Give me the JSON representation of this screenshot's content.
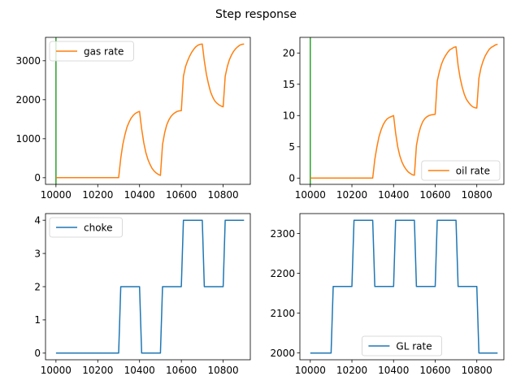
{
  "figure": {
    "title": "Step response"
  },
  "chart_data": [
    {
      "type": "line",
      "id": "gas",
      "legend": "upper-left",
      "xlim": [
        9950,
        10930
      ],
      "ylim": [
        -170,
        3600
      ],
      "xticks": [
        10000,
        10200,
        10400,
        10600,
        10800
      ],
      "yticks": [
        0,
        1000,
        2000,
        3000
      ],
      "vline": {
        "x": 10000,
        "color": "#2ca02c"
      },
      "series": [
        {
          "name": "gas rate",
          "color": "#ff7f0e",
          "x": [
            10000,
            10300,
            10310,
            10320,
            10330,
            10340,
            10350,
            10360,
            10370,
            10380,
            10390,
            10400,
            10410,
            10420,
            10430,
            10440,
            10450,
            10460,
            10470,
            10480,
            10490,
            10500,
            10510,
            10520,
            10530,
            10540,
            10550,
            10560,
            10570,
            10580,
            10590,
            10600,
            10610,
            10620,
            10630,
            10640,
            10650,
            10660,
            10670,
            10680,
            10690,
            10700,
            10710,
            10720,
            10730,
            10740,
            10750,
            10760,
            10770,
            10780,
            10790,
            10800,
            10810,
            10820,
            10830,
            10840,
            10850,
            10860,
            10870,
            10880,
            10890,
            10900
          ],
          "y": [
            0,
            0,
            500,
            850,
            1100,
            1300,
            1430,
            1530,
            1600,
            1650,
            1680,
            1700,
            1250,
            900,
            650,
            470,
            340,
            240,
            170,
            120,
            85,
            60,
            850,
            1150,
            1350,
            1480,
            1570,
            1630,
            1670,
            1700,
            1715,
            1720,
            2600,
            2850,
            3000,
            3120,
            3220,
            3300,
            3360,
            3400,
            3420,
            3430,
            3000,
            2650,
            2400,
            2200,
            2070,
            1970,
            1910,
            1870,
            1840,
            1820,
            2600,
            2850,
            3030,
            3150,
            3240,
            3310,
            3360,
            3400,
            3420,
            3430
          ]
        }
      ]
    },
    {
      "type": "line",
      "id": "oil",
      "legend": "lower-right",
      "xlim": [
        9950,
        10930
      ],
      "ylim": [
        -1,
        22.5
      ],
      "xticks": [
        10000,
        10200,
        10400,
        10600,
        10800
      ],
      "yticks": [
        0,
        5,
        10,
        15,
        20
      ],
      "vline": {
        "x": 10000,
        "color": "#2ca02c"
      },
      "series": [
        {
          "name": "oil rate",
          "color": "#ff7f0e",
          "x": [
            10000,
            10300,
            10310,
            10320,
            10330,
            10340,
            10350,
            10360,
            10370,
            10380,
            10390,
            10400,
            10410,
            10420,
            10430,
            10440,
            10450,
            10460,
            10470,
            10480,
            10490,
            10500,
            10510,
            10520,
            10530,
            10540,
            10550,
            10560,
            10570,
            10580,
            10590,
            10600,
            10610,
            10620,
            10630,
            10640,
            10650,
            10660,
            10670,
            10680,
            10690,
            10700,
            10710,
            10720,
            10730,
            10740,
            10750,
            10760,
            10770,
            10780,
            10790,
            10800,
            10810,
            10820,
            10830,
            10840,
            10850,
            10860,
            10870,
            10880,
            10890,
            10900
          ],
          "y": [
            0,
            0,
            3.0,
            5.0,
            6.6,
            7.7,
            8.5,
            9.1,
            9.5,
            9.7,
            9.85,
            10.0,
            7.2,
            5.0,
            3.6,
            2.6,
            1.9,
            1.4,
            1.0,
            0.75,
            0.55,
            0.45,
            5.2,
            7.0,
            8.2,
            9.0,
            9.5,
            9.8,
            10.0,
            10.1,
            10.15,
            10.2,
            15.5,
            17.0,
            18.2,
            19.0,
            19.6,
            20.1,
            20.5,
            20.7,
            20.9,
            21.0,
            18.0,
            16.0,
            14.5,
            13.4,
            12.6,
            12.1,
            11.7,
            11.4,
            11.25,
            11.2,
            16.0,
            17.6,
            18.7,
            19.5,
            20.1,
            20.6,
            20.9,
            21.1,
            21.3,
            21.4
          ]
        }
      ]
    },
    {
      "type": "line",
      "id": "choke",
      "legend": "upper-left",
      "xlim": [
        9950,
        10930
      ],
      "ylim": [
        -0.2,
        4.2
      ],
      "xticks": [
        10000,
        10200,
        10400,
        10600,
        10800
      ],
      "yticks": [
        0,
        1,
        2,
        3,
        4
      ],
      "series": [
        {
          "name": "choke",
          "color": "#1f77b4",
          "x": [
            10000,
            10300,
            10310,
            10400,
            10410,
            10500,
            10510,
            10600,
            10610,
            10700,
            10710,
            10800,
            10810,
            10900
          ],
          "y": [
            0,
            0,
            2,
            2,
            0,
            0,
            2,
            2,
            4,
            4,
            2,
            2,
            4,
            4
          ]
        }
      ]
    },
    {
      "type": "line",
      "id": "gl",
      "legend": "lower-center",
      "xlim": [
        9950,
        10930
      ],
      "ylim": [
        1983,
        2350
      ],
      "xticks": [
        10000,
        10200,
        10400,
        10600,
        10800
      ],
      "yticks": [
        2000,
        2100,
        2200,
        2300
      ],
      "series": [
        {
          "name": "GL rate",
          "color": "#1f77b4",
          "x": [
            10000,
            10100,
            10110,
            10200,
            10210,
            10300,
            10310,
            10400,
            10410,
            10500,
            10510,
            10600,
            10610,
            10700,
            10710,
            10800,
            10810,
            10900
          ],
          "y": [
            2000,
            2000,
            2167,
            2167,
            2333,
            2333,
            2167,
            2167,
            2333,
            2333,
            2167,
            2167,
            2333,
            2333,
            2167,
            2167,
            2000,
            2000
          ]
        }
      ]
    }
  ]
}
